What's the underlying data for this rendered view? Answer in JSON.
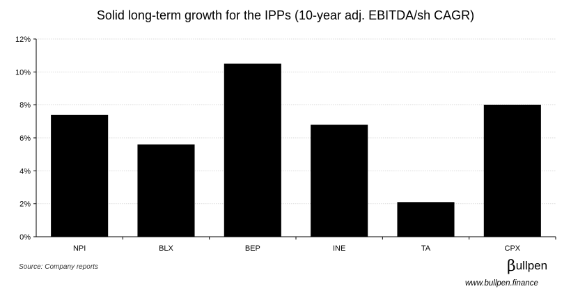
{
  "chart_data": {
    "type": "bar",
    "title": "Solid long-term growth for the IPPs (10-year adj. EBITDA/sh CAGR)",
    "xlabel": "",
    "ylabel": "",
    "categories": [
      "NPI",
      "BLX",
      "BEP",
      "INE",
      "TA",
      "CPX"
    ],
    "values": [
      0.074,
      0.056,
      0.105,
      0.068,
      0.021,
      0.08
    ],
    "ylim": [
      0,
      0.12
    ],
    "yticks": [
      0,
      0.02,
      0.04,
      0.06,
      0.08,
      0.1,
      0.12
    ],
    "ytick_labels": [
      "0%",
      "2%",
      "4%",
      "6%",
      "8%",
      "10%",
      "12%"
    ],
    "grid": true,
    "legend": "none",
    "bar_color": "#000000",
    "grid_color": "#d9d9d9"
  },
  "source": "Source: Company reports",
  "brand": {
    "logo_mark": "β",
    "logo_text": "ullpen",
    "logo_icon": "bullpen-logo-icon",
    "url": "www.bullpen.finance"
  }
}
